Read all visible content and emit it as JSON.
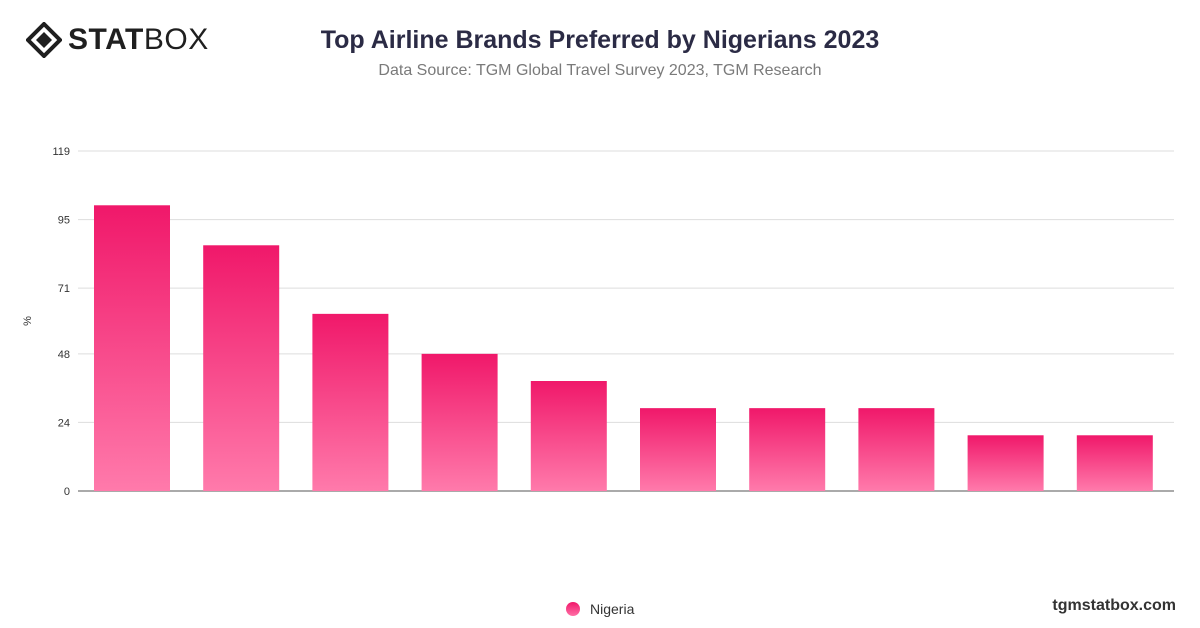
{
  "header": {
    "logo_bold": "STAT",
    "logo_light": "BOX",
    "title": "Top Airline Brands Preferred by Nigerians 2023",
    "subtitle": "Data Source: TGM Global Travel Survey 2023, TGM Research"
  },
  "footer": {
    "site": "tgmstatbox.com"
  },
  "colors": {
    "bar_top": "#f0186a",
    "bar_bottom": "#ff7aab",
    "grid": "#dddddd"
  },
  "chart_data": {
    "type": "bar",
    "title": "Top Airline Brands Preferred by Nigerians 2023",
    "ylabel": "%",
    "ylim": [
      0,
      119
    ],
    "yticks": [
      0,
      24,
      48,
      71,
      95,
      119
    ],
    "grid": true,
    "legend_placement": "bottom-center",
    "categories": [
      "",
      "",
      "",
      "",
      "",
      "",
      "",
      "",
      "",
      ""
    ],
    "series": [
      {
        "name": "Nigeria",
        "values": [
          100,
          86,
          62,
          48,
          38.5,
          29,
          29,
          29,
          19.5,
          19.5
        ]
      }
    ]
  }
}
